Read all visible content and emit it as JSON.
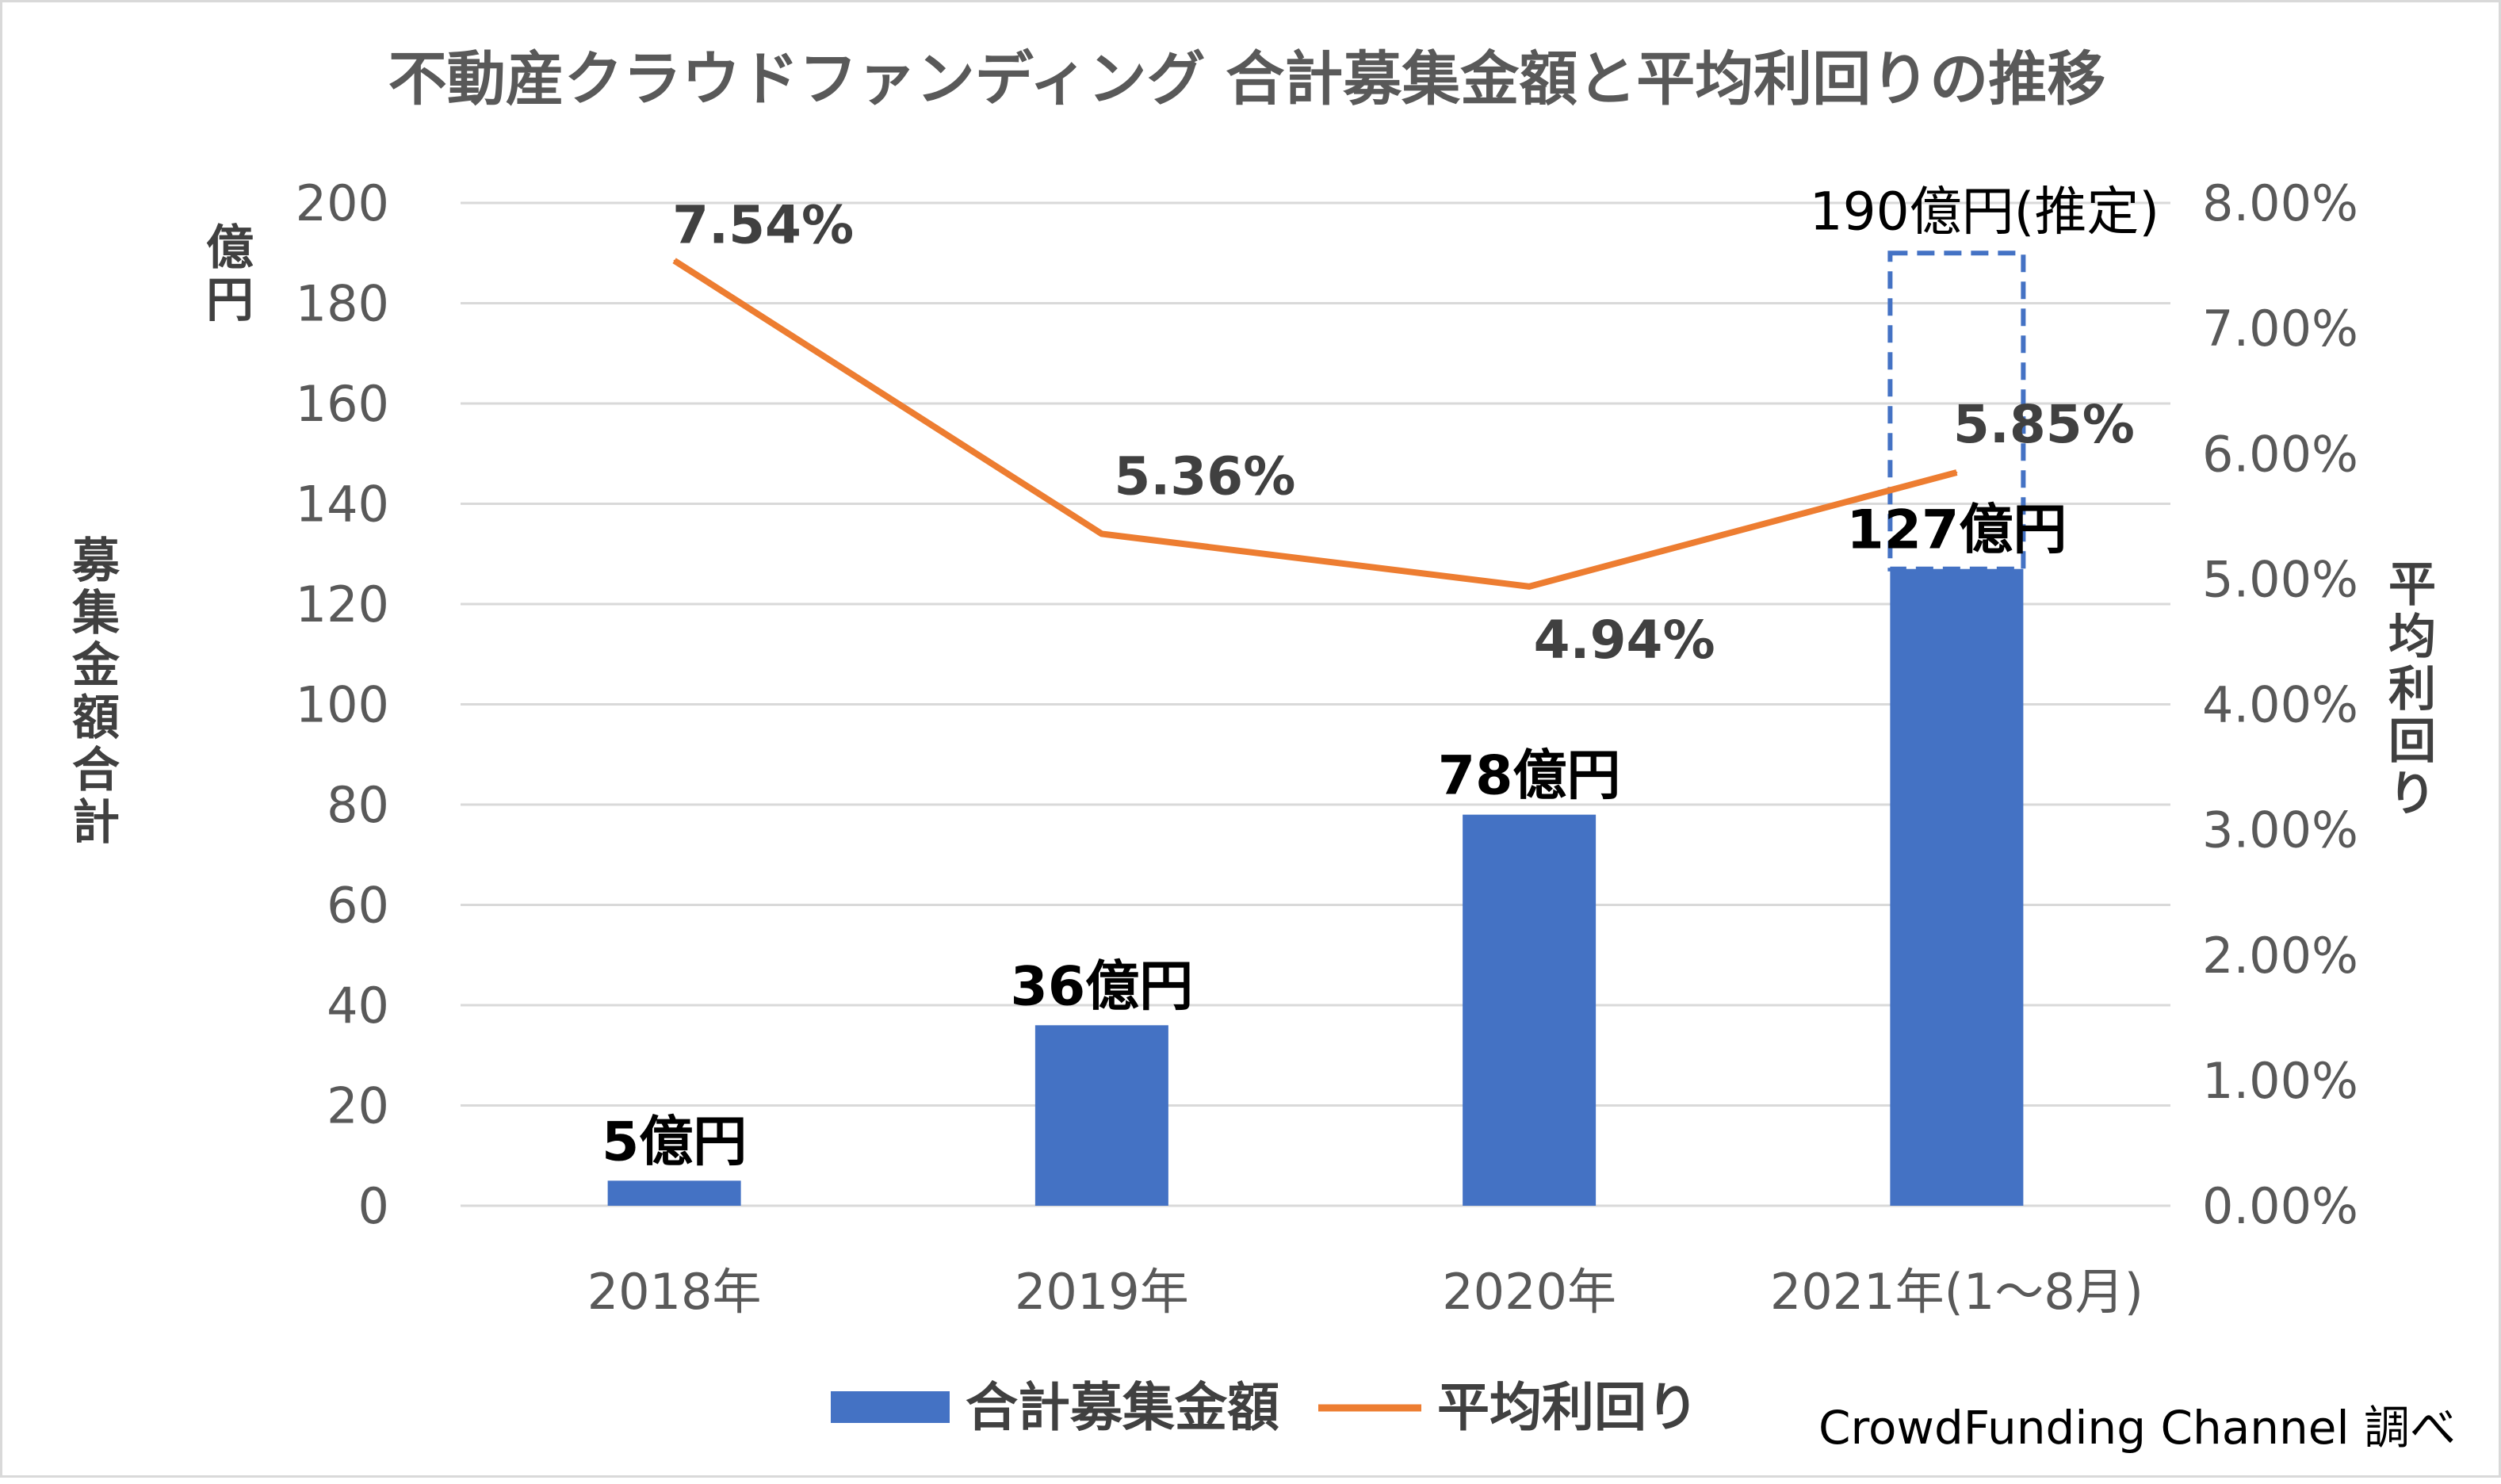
{
  "colors": {
    "bar": "#4472C4",
    "line": "#ED7D31",
    "grid": "#d9d9d9",
    "text": "#595959",
    "estimate_border": "#4472C4"
  },
  "chart_data": {
    "type": "bar",
    "title": "不動産クラウドファンディング 合計募集金額と平均利回りの推移",
    "categories": [
      "2018年",
      "2019年",
      "2020年",
      "2021年(1～8月)"
    ],
    "series": [
      {
        "name": "合計募集金額",
        "type": "bar",
        "axis": "left",
        "values": [
          5,
          36,
          78,
          127
        ],
        "labels": [
          "5億円",
          "36億円",
          "78億円",
          "127億円"
        ]
      },
      {
        "name": "平均利回り",
        "type": "line",
        "axis": "right",
        "values": [
          7.54,
          5.36,
          4.94,
          5.85
        ],
        "labels": [
          "7.54%",
          "5.36%",
          "4.94%",
          "5.85%"
        ]
      }
    ],
    "estimate": {
      "category": "2021年(1～8月)",
      "value": 190,
      "label": "190億円(推定)",
      "style": "dashed"
    },
    "y_left": {
      "unit": "億円",
      "label": "募集金額合計",
      "range": [
        0,
        200
      ],
      "ticks": [
        "0",
        "20",
        "40",
        "60",
        "80",
        "100",
        "120",
        "140",
        "160",
        "180",
        "200"
      ]
    },
    "y_right": {
      "label": "平均利回り",
      "range": [
        0,
        8
      ],
      "ticks": [
        "0.00%",
        "1.00%",
        "2.00%",
        "3.00%",
        "4.00%",
        "5.00%",
        "6.00%",
        "7.00%",
        "8.00%"
      ]
    },
    "grid": true,
    "legend_position": "bottom"
  },
  "source_note": "CrowdFunding Channel 調べ"
}
